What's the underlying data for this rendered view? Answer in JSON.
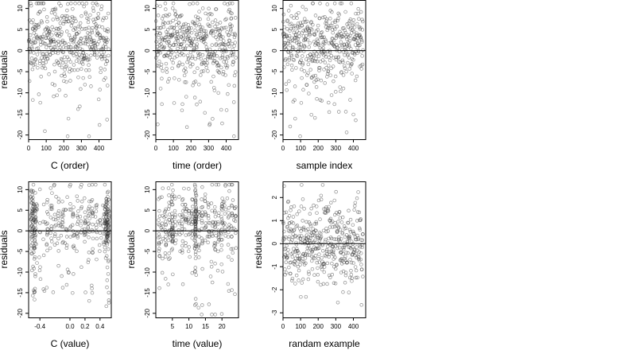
{
  "chart_data": [
    {
      "type": "scatter",
      "xlabel": "C (order)",
      "ylabel": "residuals",
      "xlim": [
        0,
        470
      ],
      "ylim": [
        -21,
        12
      ],
      "x_ticks": [
        0,
        100,
        200,
        300,
        400
      ],
      "y_ticks": [
        -20,
        -15,
        -10,
        -5,
        0,
        5,
        10
      ],
      "reference_line": 0,
      "n_points": 450,
      "pattern": "order"
    },
    {
      "type": "scatter",
      "xlabel": "time (order)",
      "ylabel": "residuals",
      "xlim": [
        0,
        470
      ],
      "ylim": [
        -21,
        12
      ],
      "x_ticks": [
        0,
        100,
        200,
        300,
        400
      ],
      "y_ticks": [
        -20,
        -15,
        -10,
        -5,
        0,
        5,
        10
      ],
      "reference_line": 0,
      "n_points": 450,
      "pattern": "order"
    },
    {
      "type": "scatter",
      "xlabel": "sample index",
      "ylabel": "residuals",
      "xlim": [
        0,
        470
      ],
      "ylim": [
        -21,
        12
      ],
      "x_ticks": [
        0,
        100,
        200,
        300,
        400
      ],
      "y_ticks": [
        -20,
        -15,
        -10,
        -5,
        0,
        5,
        10
      ],
      "reference_line": 0,
      "n_points": 450,
      "pattern": "order"
    },
    {
      "type": "scatter",
      "xlabel": "C (value)",
      "ylabel": "residuals",
      "xlim": [
        -0.55,
        0.55
      ],
      "ylim": [
        -21,
        12
      ],
      "x_ticks": [
        -0.4,
        0.0,
        0.2,
        0.4
      ],
      "y_ticks": [
        -20,
        -15,
        -10,
        -5,
        0,
        5,
        10
      ],
      "reference_line": 0,
      "n_points": 450,
      "pattern": "cvalue"
    },
    {
      "type": "scatter",
      "xlabel": "time (value)",
      "ylabel": "residuals",
      "xlim": [
        0,
        25
      ],
      "ylim": [
        -21,
        12
      ],
      "x_ticks": [
        5,
        10,
        15,
        20
      ],
      "y_ticks": [
        -20,
        -15,
        -10,
        -5,
        0,
        5,
        10
      ],
      "reference_line": 0,
      "n_points": 450,
      "pattern": "timevalue"
    },
    {
      "type": "scatter",
      "xlabel": "randam example",
      "ylabel": "residuals",
      "xlim": [
        0,
        470
      ],
      "ylim": [
        -3.2,
        2.7
      ],
      "x_ticks": [
        0,
        100,
        200,
        300,
        400
      ],
      "y_ticks": [
        -3,
        -2,
        -1,
        0,
        1,
        2
      ],
      "reference_line": 0,
      "n_points": 450,
      "pattern": "random"
    }
  ]
}
